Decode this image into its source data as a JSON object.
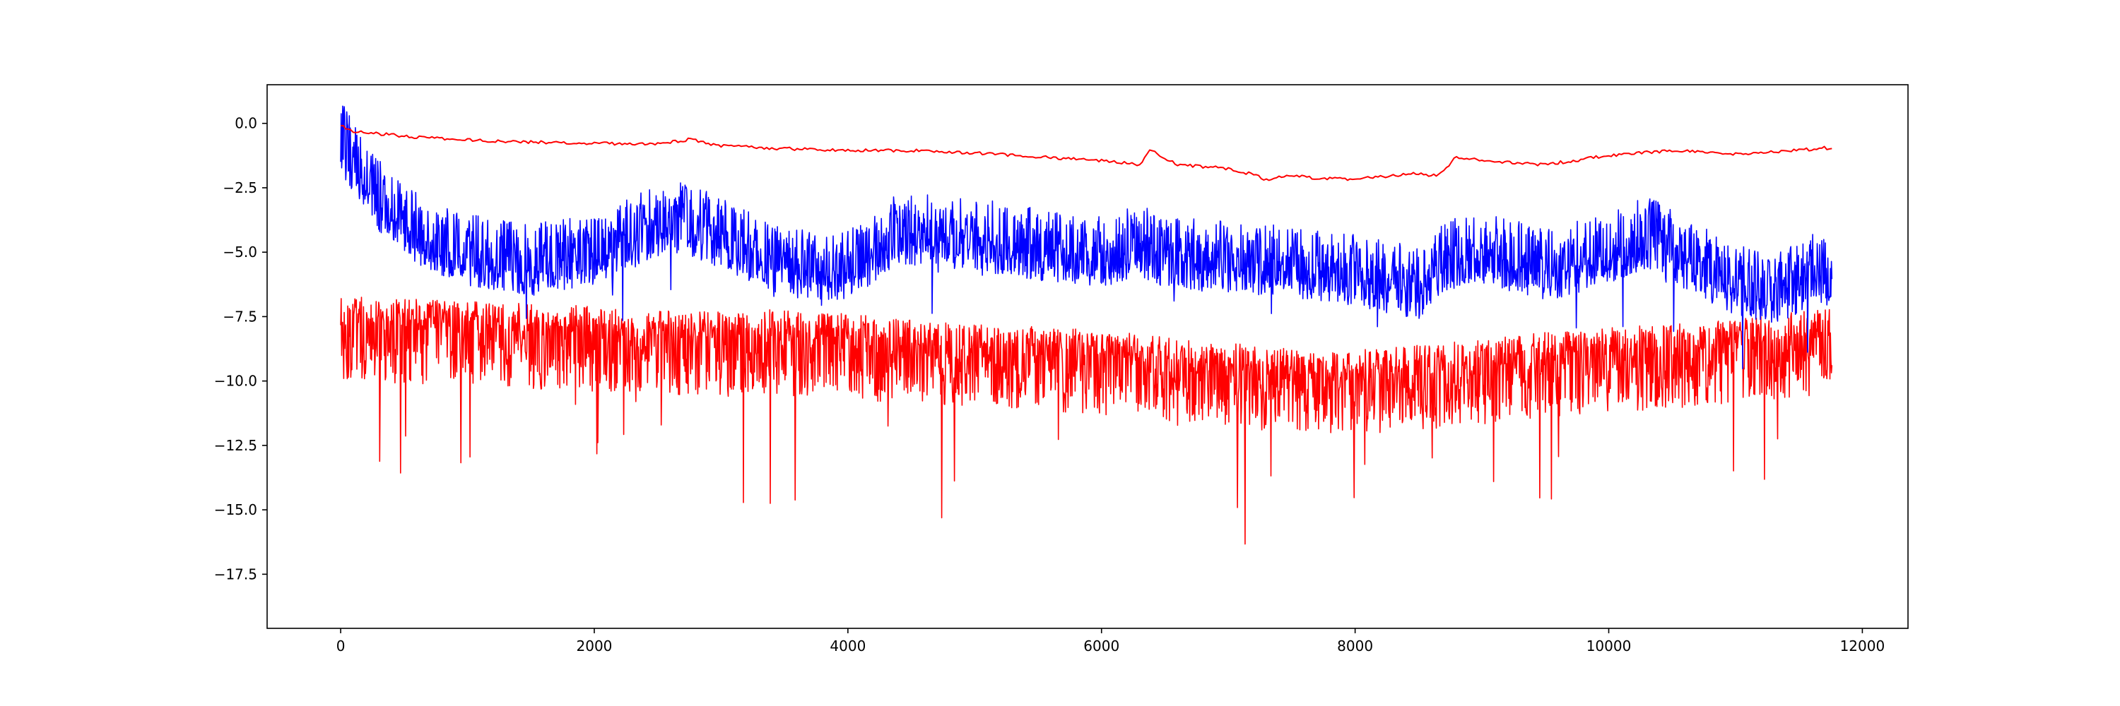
{
  "chart_data": {
    "type": "line",
    "title": "",
    "xlabel": "",
    "ylabel": "",
    "xlim": [
      -580,
      12360
    ],
    "ylim": [
      -19.6,
      1.5
    ],
    "x_ticks": [
      0,
      2000,
      4000,
      6000,
      8000,
      10000,
      12000
    ],
    "x_tick_labels": [
      "0",
      "2000",
      "4000",
      "6000",
      "8000",
      "10000",
      "12000"
    ],
    "y_ticks": [
      0.0,
      -2.5,
      -5.0,
      -7.5,
      -10.0,
      -12.5,
      -15.0,
      -17.5
    ],
    "y_tick_labels": [
      "0.0",
      "−2.5",
      "−5.0",
      "−7.5",
      "−10.0",
      "−12.5",
      "−15.0",
      "−17.5"
    ],
    "grid": false,
    "legend": "none",
    "x_range": [
      0,
      11760
    ],
    "series": [
      {
        "color": "#ff0000",
        "style": "noisy",
        "noise_down": 2.2,
        "noise_up": 1.1,
        "spike_rate": 0.012,
        "spike_depth": 4.5,
        "points": [
          [
            0,
            -7.8
          ],
          [
            500,
            -7.9
          ],
          [
            1000,
            -8.0
          ],
          [
            1500,
            -8.1
          ],
          [
            2000,
            -8.2
          ],
          [
            2500,
            -8.3
          ],
          [
            3000,
            -8.4
          ],
          [
            3500,
            -8.3
          ],
          [
            4000,
            -8.5
          ],
          [
            4500,
            -8.7
          ],
          [
            5000,
            -8.9
          ],
          [
            5500,
            -9.0
          ],
          [
            6000,
            -9.1
          ],
          [
            6500,
            -9.4
          ],
          [
            7000,
            -9.6
          ],
          [
            7500,
            -9.8
          ],
          [
            8000,
            -9.9
          ],
          [
            8500,
            -9.7
          ],
          [
            9000,
            -9.5
          ],
          [
            9500,
            -9.2
          ],
          [
            10000,
            -9.0
          ],
          [
            10500,
            -8.9
          ],
          [
            11000,
            -8.7
          ],
          [
            11500,
            -8.4
          ],
          [
            11760,
            -8.3
          ]
        ]
      },
      {
        "color": "#0000ff",
        "style": "noisy",
        "noise_down": 1.1,
        "noise_up": 1.7,
        "spike_rate": 0.008,
        "spike_depth": 2.0,
        "points": [
          [
            0,
            -0.8
          ],
          [
            100,
            -1.6
          ],
          [
            300,
            -3.1
          ],
          [
            600,
            -4.4
          ],
          [
            1000,
            -5.2
          ],
          [
            1500,
            -5.6
          ],
          [
            2000,
            -5.2
          ],
          [
            2400,
            -4.3
          ],
          [
            2700,
            -3.9
          ],
          [
            3000,
            -4.6
          ],
          [
            3500,
            -5.6
          ],
          [
            3800,
            -6.1
          ],
          [
            4100,
            -5.4
          ],
          [
            4400,
            -4.4
          ],
          [
            5000,
            -4.6
          ],
          [
            5500,
            -5.0
          ],
          [
            6000,
            -5.3
          ],
          [
            6300,
            -4.8
          ],
          [
            6500,
            -5.3
          ],
          [
            7000,
            -5.5
          ],
          [
            7500,
            -5.7
          ],
          [
            8000,
            -6.0
          ],
          [
            8500,
            -6.5
          ],
          [
            8700,
            -5.4
          ],
          [
            9000,
            -5.1
          ],
          [
            9500,
            -5.8
          ],
          [
            10000,
            -5.2
          ],
          [
            10300,
            -4.5
          ],
          [
            10700,
            -5.6
          ],
          [
            11000,
            -6.4
          ],
          [
            11300,
            -6.8
          ],
          [
            11600,
            -6.0
          ],
          [
            11760,
            -6.0
          ]
        ]
      },
      {
        "color": "#ff0000",
        "style": "smooth",
        "points": [
          [
            0,
            -0.1
          ],
          [
            100,
            -0.3
          ],
          [
            500,
            -0.5
          ],
          [
            1000,
            -0.65
          ],
          [
            1500,
            -0.72
          ],
          [
            2000,
            -0.78
          ],
          [
            2500,
            -0.8
          ],
          [
            2750,
            -0.62
          ],
          [
            3000,
            -0.88
          ],
          [
            3500,
            -0.98
          ],
          [
            4000,
            -1.05
          ],
          [
            4500,
            -1.05
          ],
          [
            5000,
            -1.15
          ],
          [
            5500,
            -1.3
          ],
          [
            6000,
            -1.45
          ],
          [
            6300,
            -1.6
          ],
          [
            6380,
            -1.05
          ],
          [
            6450,
            -1.2
          ],
          [
            6600,
            -1.6
          ],
          [
            7000,
            -1.75
          ],
          [
            7200,
            -2.0
          ],
          [
            7300,
            -2.2
          ],
          [
            7500,
            -2.0
          ],
          [
            7700,
            -2.15
          ],
          [
            8000,
            -2.15
          ],
          [
            8500,
            -1.95
          ],
          [
            8650,
            -2.05
          ],
          [
            8800,
            -1.3
          ],
          [
            9000,
            -1.45
          ],
          [
            9500,
            -1.6
          ],
          [
            10000,
            -1.25
          ],
          [
            10500,
            -1.05
          ],
          [
            11000,
            -1.2
          ],
          [
            11500,
            -1.05
          ],
          [
            11700,
            -0.95
          ],
          [
            11760,
            -1.0
          ]
        ]
      }
    ]
  }
}
